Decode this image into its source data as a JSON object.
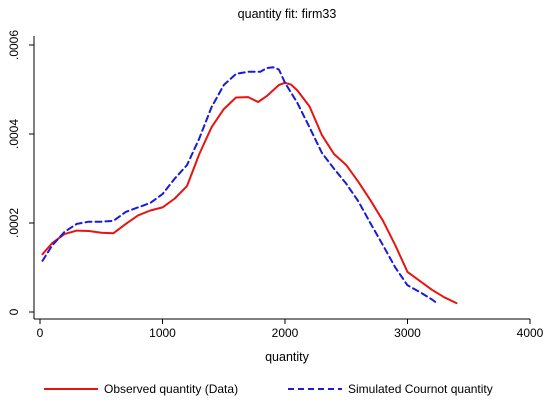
{
  "chart_data": {
    "type": "line",
    "title": "quantity fit: firm33",
    "xlabel": "quantity",
    "ylabel": "",
    "xlim": [
      0,
      4000
    ],
    "ylim": [
      0,
      0.0006
    ],
    "x_ticks": [
      0,
      1000,
      2000,
      3000,
      4000
    ],
    "x_tick_labels": [
      "0",
      "1000",
      "2000",
      "3000",
      "4000"
    ],
    "y_ticks": [
      0,
      0.0002,
      0.0004,
      0.0006
    ],
    "y_tick_labels": [
      "0",
      ".0002",
      ".0004",
      ".0006"
    ],
    "grid": false,
    "legend_position": "bottom",
    "series": [
      {
        "name": "Observed quantity (Data)",
        "color": "#e8140f",
        "dash": "solid",
        "x": [
          20,
          100,
          200,
          300,
          400,
          500,
          600,
          700,
          800,
          900,
          1000,
          1100,
          1200,
          1300,
          1400,
          1500,
          1600,
          1700,
          1780,
          1850,
          1950,
          2000,
          2050,
          2100,
          2200,
          2300,
          2400,
          2500,
          2600,
          2700,
          2800,
          2900,
          3000,
          3100,
          3200,
          3300,
          3400
        ],
        "y": [
          0.00013,
          0.000155,
          0.000175,
          0.000183,
          0.000182,
          0.000178,
          0.000177,
          0.000198,
          0.000217,
          0.000228,
          0.000235,
          0.000255,
          0.000283,
          0.000355,
          0.000415,
          0.000456,
          0.000482,
          0.000483,
          0.000472,
          0.000485,
          0.00051,
          0.000515,
          0.000511,
          0.000498,
          0.000462,
          0.000398,
          0.000355,
          0.00033,
          0.000292,
          0.00025,
          0.000205,
          0.00015,
          9e-05,
          7e-05,
          5e-05,
          3.3e-05,
          2e-05
        ]
      },
      {
        "name": "Simulated Cournot quantity",
        "color": "#1a1ad8",
        "dash": "dashed",
        "x": [
          20,
          100,
          200,
          300,
          400,
          500,
          600,
          700,
          800,
          900,
          1000,
          1100,
          1200,
          1300,
          1400,
          1500,
          1600,
          1700,
          1800,
          1850,
          1900,
          1950,
          2000,
          2100,
          2200,
          2300,
          2400,
          2500,
          2600,
          2700,
          2800,
          2900,
          3000,
          3100,
          3200,
          3250
        ],
        "y": [
          0.000115,
          0.00015,
          0.00018,
          0.000198,
          0.000203,
          0.000203,
          0.000205,
          0.000225,
          0.000235,
          0.000245,
          0.000265,
          0.0003,
          0.00033,
          0.00039,
          0.00046,
          0.00051,
          0.000535,
          0.00054,
          0.00054,
          0.000548,
          0.00055,
          0.000545,
          0.000515,
          0.00047,
          0.000415,
          0.000358,
          0.000322,
          0.000288,
          0.000248,
          0.000198,
          0.00015,
          0.0001,
          6e-05,
          4.5e-05,
          2.8e-05,
          1.8e-05
        ]
      }
    ]
  }
}
